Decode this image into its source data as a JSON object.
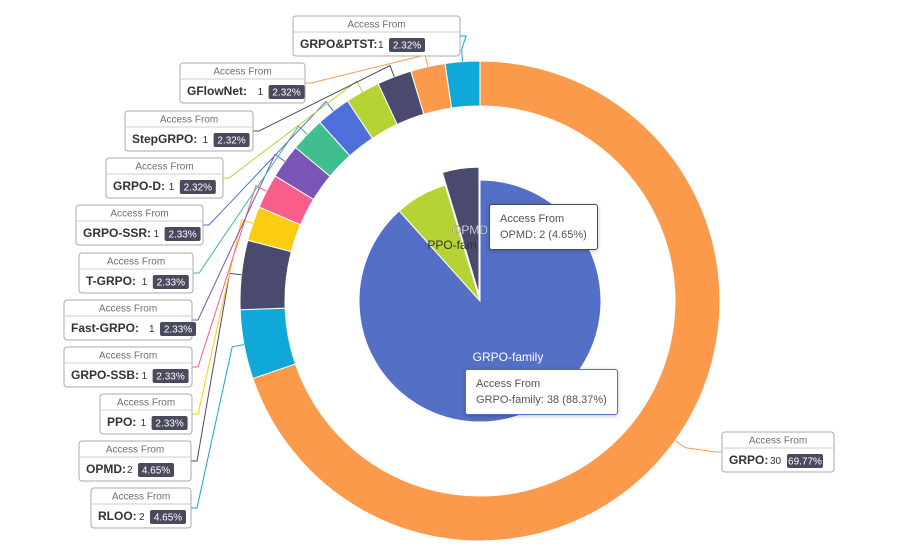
{
  "chart_data": {
    "type": "pie",
    "title": "",
    "inner_pie": {
      "slices": [
        {
          "name": "GRPO-family",
          "value": 38,
          "percent": "88.37%",
          "color": "#5470c6"
        },
        {
          "name": "PPO-family",
          "value": 3,
          "percent": "6.98%",
          "color": "#b5d334"
        },
        {
          "name": "OPMD",
          "value": 2,
          "percent": "4.65%",
          "color": "#4a4a6e"
        }
      ],
      "visible_labels": [
        {
          "text": "GRPO-family",
          "slice": 0
        },
        {
          "text": "PPO-fam",
          "slice": 1
        },
        {
          "text": "OPMD",
          "slice": 2
        }
      ]
    },
    "outer_ring": {
      "label_header": "Access From",
      "slices": [
        {
          "name": "GRPO",
          "value": 30,
          "percent": "69.77%",
          "color": "#fc9a4c"
        },
        {
          "name": "RLOO",
          "value": 2,
          "percent": "4.65%",
          "color": "#0fa8d9"
        },
        {
          "name": "OPMD",
          "value": 2,
          "percent": "4.65%",
          "color": "#4a4a6e"
        },
        {
          "name": "PPO",
          "value": 1,
          "percent": "2.33%",
          "color": "#fdcb10"
        },
        {
          "name": "GRPO-SSB",
          "value": 1,
          "percent": "2.33%",
          "color": "#f95d8a"
        },
        {
          "name": "Fast-GRPO",
          "value": 1,
          "percent": "2.33%",
          "color": "#7b55b5"
        },
        {
          "name": "T-GRPO",
          "value": 1,
          "percent": "2.33%",
          "color": "#3fbe8e"
        },
        {
          "name": "GRPO-SSR",
          "value": 1,
          "percent": "2.33%",
          "color": "#4f6fdb"
        },
        {
          "name": "GRPO-D",
          "value": 1,
          "percent": "2.32%",
          "color": "#b5d334"
        },
        {
          "name": "StepGRPO",
          "value": 1,
          "percent": "2.32%",
          "color": "#4a4a6e"
        },
        {
          "name": "GFlowNet",
          "value": 1,
          "percent": "2.32%",
          "color": "#fc9a4c"
        },
        {
          "name": "GRPO&PTST",
          "value": 1,
          "percent": "2.32%",
          "color": "#0fa8d9"
        }
      ]
    },
    "tooltips": [
      {
        "header": "Access From",
        "line": "OPMD: 2 (4.65%)"
      },
      {
        "header": "Access From",
        "line": "GRPO-family: 38 (88.37%)"
      }
    ]
  }
}
